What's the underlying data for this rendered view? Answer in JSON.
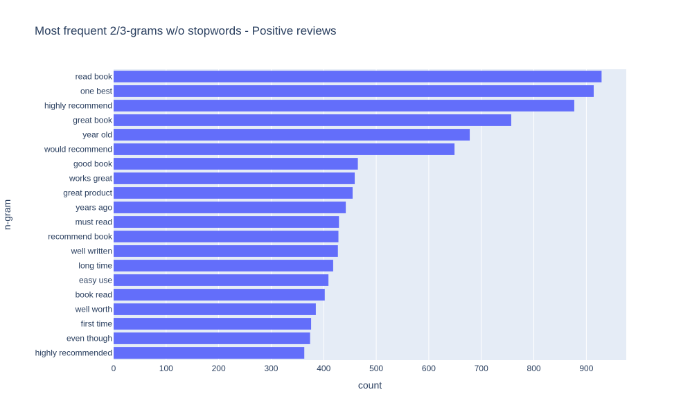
{
  "chart_data": {
    "type": "bar",
    "orientation": "horizontal",
    "title": "Most frequent 2/3-grams w/o stopwords - Positive reviews",
    "xlabel": "count",
    "ylabel": "n-gram",
    "xlim": [
      0,
      976
    ],
    "xticks": [
      0,
      100,
      200,
      300,
      400,
      500,
      600,
      700,
      800,
      900
    ],
    "grid": true,
    "legend": "none",
    "bar_color": "#636efa",
    "plot_bg": "#e5ecf6",
    "categories": [
      "read book",
      "one best",
      "highly recommend",
      "great book",
      "year old",
      "would recommend",
      "good book",
      "works great",
      "great product",
      "years ago",
      "must read",
      "recommend book",
      "well written",
      "long time",
      "easy use",
      "book read",
      "well worth",
      "first time",
      "even though",
      "highly recommended"
    ],
    "values": [
      929,
      914,
      877,
      757,
      678,
      649,
      465,
      459,
      455,
      442,
      429,
      428,
      427,
      418,
      409,
      402,
      385,
      376,
      374,
      363
    ]
  }
}
